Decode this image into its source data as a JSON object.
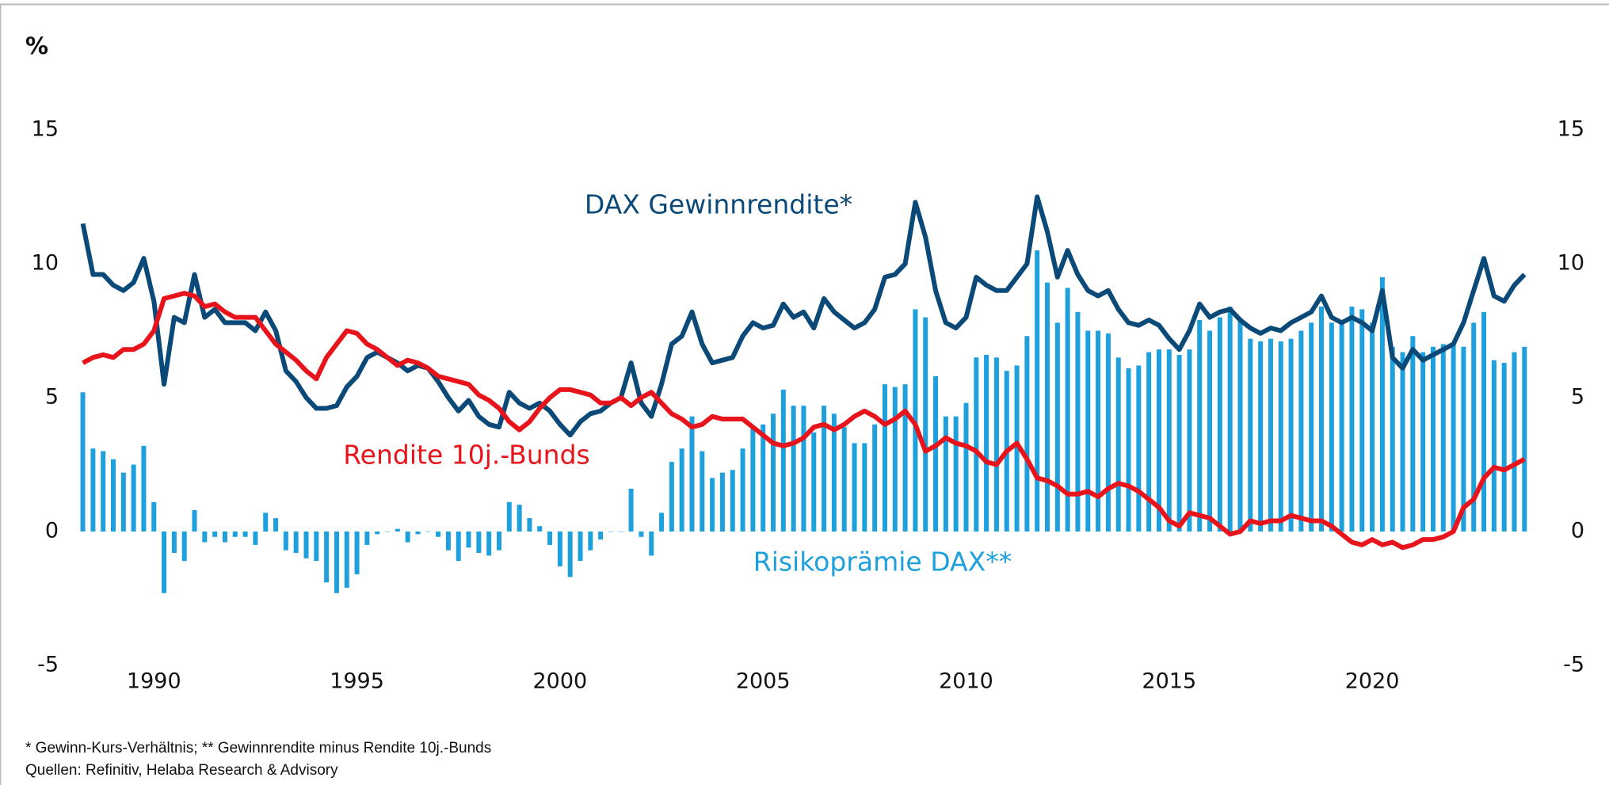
{
  "chart_data": {
    "type": "combo",
    "y_label": "%",
    "footnotes": [
      "* Gewinn-Kurs-Verhältnis; ** Gewinnrendite minus Rendite 10j.-Bunds",
      "Quellen: Refinitiv, Helaba Research & Advisory"
    ],
    "x": [
      1988.25,
      1988.5,
      1988.75,
      1989,
      1989.25,
      1989.5,
      1989.75,
      1990,
      1990.25,
      1990.5,
      1990.75,
      1991,
      1991.25,
      1991.5,
      1991.75,
      1992,
      1992.25,
      1992.5,
      1992.75,
      1993,
      1993.25,
      1993.5,
      1993.75,
      1994,
      1994.25,
      1994.5,
      1994.75,
      1995,
      1995.25,
      1995.5,
      1995.75,
      1996,
      1996.25,
      1996.5,
      1996.75,
      1997,
      1997.25,
      1997.5,
      1997.75,
      1998,
      1998.25,
      1998.5,
      1998.75,
      1999,
      1999.25,
      1999.5,
      1999.75,
      2000,
      2000.25,
      2000.5,
      2000.75,
      2001,
      2001.25,
      2001.5,
      2001.75,
      2002,
      2002.25,
      2002.5,
      2002.75,
      2003,
      2003.25,
      2003.5,
      2003.75,
      2004,
      2004.25,
      2004.5,
      2004.75,
      2005,
      2005.25,
      2005.5,
      2005.75,
      2006,
      2006.25,
      2006.5,
      2006.75,
      2007,
      2007.25,
      2007.5,
      2007.75,
      2008,
      2008.25,
      2008.5,
      2008.75,
      2009,
      2009.25,
      2009.5,
      2009.75,
      2010,
      2010.25,
      2010.5,
      2010.75,
      2011,
      2011.25,
      2011.5,
      2011.75,
      2012,
      2012.25,
      2012.5,
      2012.75,
      2013,
      2013.25,
      2013.5,
      2013.75,
      2014,
      2014.25,
      2014.5,
      2014.75,
      2015,
      2015.25,
      2015.5,
      2015.75,
      2016,
      2016.25,
      2016.5,
      2016.75,
      2017,
      2017.25,
      2017.5,
      2017.75,
      2018,
      2018.25,
      2018.5,
      2018.75,
      2019,
      2019.25,
      2019.5,
      2019.75,
      2020,
      2020.25,
      2020.5,
      2020.75,
      2021,
      2021.25,
      2021.5,
      2021.75,
      2022,
      2022.25,
      2022.5,
      2022.75,
      2023,
      2023.25,
      2023.5,
      2023.75
    ],
    "series": [
      {
        "name": "Risikoprämie DAX**",
        "type": "bar",
        "color": "#1ea0dc",
        "values": [
          5.2,
          3.1,
          3.0,
          2.7,
          2.2,
          2.5,
          3.2,
          1.1,
          -2.3,
          -0.8,
          -1.1,
          0.8,
          -0.4,
          -0.2,
          -0.4,
          -0.2,
          -0.2,
          -0.5,
          0.7,
          0.5,
          -0.7,
          -0.8,
          -1.0,
          -1.1,
          -1.9,
          -2.3,
          -2.1,
          -1.6,
          -0.5,
          -0.1,
          0.0,
          0.1,
          -0.4,
          -0.1,
          0.0,
          -0.2,
          -0.7,
          -1.1,
          -0.6,
          -0.8,
          -0.9,
          -0.7,
          1.1,
          1.0,
          0.5,
          0.2,
          -0.5,
          -1.3,
          -1.7,
          -1.1,
          -0.7,
          -0.3,
          0.0,
          0.0,
          1.6,
          -0.2,
          -0.9,
          0.7,
          2.6,
          3.1,
          4.3,
          3.0,
          2.0,
          2.2,
          2.3,
          3.1,
          3.9,
          4.0,
          4.4,
          5.3,
          4.7,
          4.7,
          3.7,
          4.7,
          4.4,
          3.9,
          3.3,
          3.3,
          4.0,
          5.5,
          5.4,
          5.5,
          8.3,
          8.0,
          5.8,
          4.3,
          4.3,
          4.8,
          6.5,
          6.6,
          6.5,
          6.0,
          6.2,
          7.3,
          10.5,
          9.3,
          7.8,
          9.1,
          8.2,
          7.5,
          7.5,
          7.4,
          6.5,
          6.1,
          6.2,
          6.7,
          6.8,
          6.8,
          6.6,
          6.8,
          7.9,
          7.5,
          8.0,
          8.4,
          7.9,
          7.2,
          7.1,
          7.2,
          7.1,
          7.2,
          7.5,
          7.8,
          8.4,
          7.8,
          7.9,
          8.4,
          8.3,
          7.8,
          9.5,
          6.9,
          6.7,
          7.3,
          6.7,
          6.9,
          7.0,
          7.0,
          6.9,
          7.8,
          8.2,
          6.4,
          6.3,
          6.7,
          6.9
        ]
      },
      {
        "name": "DAX Gewinnrendite*",
        "type": "line",
        "color": "#0b4a78",
        "values": [
          11.5,
          9.6,
          9.6,
          9.2,
          9.0,
          9.3,
          10.2,
          8.6,
          5.5,
          8.0,
          7.8,
          9.6,
          8.0,
          8.3,
          7.8,
          7.8,
          7.8,
          7.5,
          8.2,
          7.5,
          6.0,
          5.6,
          5.0,
          4.6,
          4.6,
          4.7,
          5.4,
          5.8,
          6.5,
          6.7,
          6.5,
          6.3,
          6.0,
          6.2,
          6.1,
          5.6,
          5.0,
          4.5,
          4.9,
          4.3,
          4.0,
          3.9,
          5.2,
          4.8,
          4.6,
          4.8,
          4.5,
          4.0,
          3.6,
          4.1,
          4.4,
          4.5,
          4.8,
          5.0,
          6.3,
          4.8,
          4.3,
          5.5,
          7.0,
          7.3,
          8.2,
          7.0,
          6.3,
          6.4,
          6.5,
          7.3,
          7.8,
          7.6,
          7.7,
          8.5,
          8.0,
          8.2,
          7.6,
          8.7,
          8.2,
          7.9,
          7.6,
          7.8,
          8.3,
          9.5,
          9.6,
          10.0,
          12.3,
          11.0,
          9.0,
          7.8,
          7.6,
          8.0,
          9.5,
          9.2,
          9.0,
          9.0,
          9.5,
          10.0,
          12.5,
          11.2,
          9.5,
          10.5,
          9.6,
          9.0,
          8.8,
          9.0,
          8.3,
          7.8,
          7.7,
          7.9,
          7.7,
          7.2,
          6.8,
          7.5,
          8.5,
          8.0,
          8.2,
          8.3,
          7.9,
          7.6,
          7.4,
          7.6,
          7.5,
          7.8,
          8.0,
          8.2,
          8.8,
          8.0,
          7.8,
          8.0,
          7.8,
          7.5,
          9.0,
          6.5,
          6.1,
          6.8,
          6.4,
          6.6,
          6.8,
          7.0,
          7.8,
          9.0,
          10.2,
          8.8,
          8.6,
          9.2,
          9.6
        ]
      },
      {
        "name": "Rendite 10j.-Bunds",
        "type": "line",
        "color": "#e8141c",
        "values": [
          6.3,
          6.5,
          6.6,
          6.5,
          6.8,
          6.8,
          7.0,
          7.5,
          8.7,
          8.8,
          8.9,
          8.8,
          8.4,
          8.5,
          8.2,
          8.0,
          8.0,
          8.0,
          7.5,
          7.0,
          6.7,
          6.4,
          6.0,
          5.7,
          6.5,
          7.0,
          7.5,
          7.4,
          7.0,
          6.8,
          6.5,
          6.2,
          6.4,
          6.3,
          6.1,
          5.8,
          5.7,
          5.6,
          5.5,
          5.1,
          4.9,
          4.6,
          4.1,
          3.8,
          4.1,
          4.6,
          5.0,
          5.3,
          5.3,
          5.2,
          5.1,
          4.8,
          4.8,
          5.0,
          4.7,
          5.0,
          5.2,
          4.8,
          4.4,
          4.2,
          3.9,
          4.0,
          4.3,
          4.2,
          4.2,
          4.2,
          3.9,
          3.6,
          3.3,
          3.2,
          3.3,
          3.5,
          3.9,
          4.0,
          3.8,
          4.0,
          4.3,
          4.5,
          4.3,
          4.0,
          4.2,
          4.5,
          4.0,
          3.0,
          3.2,
          3.5,
          3.3,
          3.2,
          3.0,
          2.6,
          2.5,
          3.0,
          3.3,
          2.7,
          2.0,
          1.9,
          1.7,
          1.4,
          1.4,
          1.5,
          1.3,
          1.6,
          1.8,
          1.7,
          1.5,
          1.2,
          0.9,
          0.4,
          0.2,
          0.7,
          0.6,
          0.5,
          0.2,
          -0.1,
          0.0,
          0.4,
          0.3,
          0.4,
          0.4,
          0.6,
          0.5,
          0.4,
          0.4,
          0.2,
          -0.1,
          -0.4,
          -0.5,
          -0.3,
          -0.5,
          -0.4,
          -0.6,
          -0.5,
          -0.3,
          -0.3,
          -0.2,
          0.0,
          0.9,
          1.2,
          2.0,
          2.4,
          2.3,
          2.5,
          2.7
        ]
      }
    ],
    "xlim": [
      1988.2,
      2023.9
    ],
    "xticks": [
      1990,
      1995,
      2000,
      2005,
      2010,
      2015,
      2020
    ],
    "ylim": [
      -5,
      15
    ],
    "yticks": [
      -5,
      0,
      5,
      10,
      15
    ],
    "y2lim": [
      -5,
      15
    ],
    "y2ticks": [
      -5,
      0,
      5,
      10,
      15
    ],
    "grid": false
  }
}
